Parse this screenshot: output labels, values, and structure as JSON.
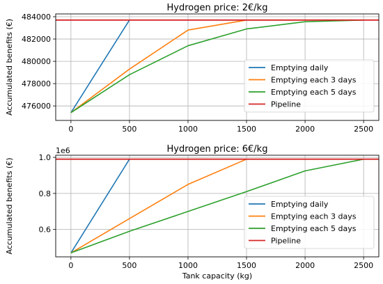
{
  "colors": {
    "daily": "#1f77b4",
    "three_days": "#ff7f0e",
    "five_days": "#2ca02c",
    "pipeline": "#d62728",
    "grid": "#b0b0b0"
  },
  "chart_data": [
    {
      "type": "line",
      "title": "Hydrogen price: 2€/kg",
      "xlabel": "",
      "ylabel": "Accumulated benefits (€)",
      "y_offset_label": "",
      "xlim": [
        -130,
        2630
      ],
      "ylim": [
        474700,
        484250
      ],
      "x_ticks": [
        0,
        500,
        1000,
        1500,
        2000,
        2500
      ],
      "x_tick_labels": [
        "0",
        "500",
        "1000",
        "1500",
        "2000",
        "2500"
      ],
      "y_ticks": [
        476000,
        478000,
        480000,
        482000,
        484000
      ],
      "y_tick_labels": [
        "476000",
        "478000",
        "480000",
        "482000",
        "484000"
      ],
      "grid": true,
      "legend_position": "lower-right",
      "series": [
        {
          "name": "Emptying daily",
          "color_key": "daily",
          "x": [
            0,
            500
          ],
          "y": [
            475400,
            483700
          ]
        },
        {
          "name": "Emptying each 3 days",
          "color_key": "three_days",
          "x": [
            0,
            500,
            1000,
            1500,
            2000,
            2500
          ],
          "y": [
            475400,
            479300,
            482800,
            483700,
            483700,
            483700
          ]
        },
        {
          "name": "Emptying each 5 days",
          "color_key": "five_days",
          "x": [
            0,
            500,
            1000,
            1500,
            2000,
            2500
          ],
          "y": [
            475400,
            478800,
            481400,
            482900,
            483550,
            483700
          ]
        },
        {
          "name": "Pipeline",
          "color_key": "pipeline",
          "hline": 483700
        }
      ]
    },
    {
      "type": "line",
      "title": "Hydrogen price: 6€/kg",
      "xlabel": "Tank capacity (kg)",
      "ylabel": "Accumulated benefits (€)",
      "y_offset_label": "1e6",
      "xlim": [
        -130,
        2630
      ],
      "ylim": [
        0.448,
        1.012
      ],
      "x_ticks": [
        0,
        500,
        1000,
        1500,
        2000,
        2500
      ],
      "x_tick_labels": [
        "0",
        "500",
        "1000",
        "1500",
        "2000",
        "2500"
      ],
      "y_ticks": [
        0.6,
        0.8,
        1.0
      ],
      "y_tick_labels": [
        "0.6",
        "0.8",
        "1.0"
      ],
      "grid": true,
      "legend_position": "lower-right",
      "series": [
        {
          "name": "Emptying daily",
          "color_key": "daily",
          "x": [
            0,
            500
          ],
          "y": [
            0.47,
            0.99
          ]
        },
        {
          "name": "Emptying each 3 days",
          "color_key": "three_days",
          "x": [
            0,
            500,
            1000,
            1500
          ],
          "y": [
            0.47,
            0.66,
            0.85,
            0.99
          ]
        },
        {
          "name": "Emptying each 5 days",
          "color_key": "five_days",
          "x": [
            0,
            500,
            1000,
            1500,
            2000,
            2500
          ],
          "y": [
            0.47,
            0.59,
            0.7,
            0.81,
            0.925,
            0.99
          ]
        },
        {
          "name": "Pipeline",
          "color_key": "pipeline",
          "hline": 0.99
        }
      ]
    }
  ]
}
